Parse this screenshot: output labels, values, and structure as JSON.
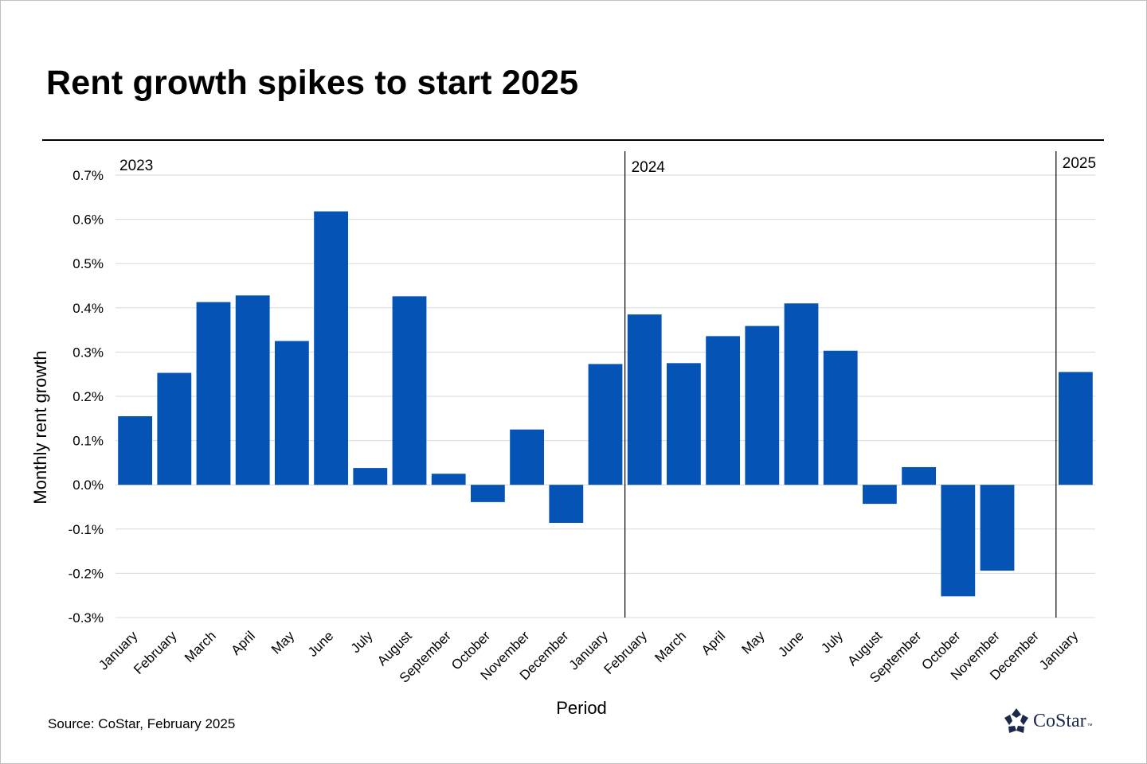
{
  "title": "Rent growth spikes to start 2025",
  "source": "Source: CoStar, February 2025",
  "logo": {
    "name": "costar-logo-icon",
    "text": "CoStar",
    "tm": "™"
  },
  "colors": {
    "bar": "#0554b5",
    "grid": "#d9d9d9",
    "text": "#000000"
  },
  "chart_data": {
    "type": "bar",
    "xlabel": "Period",
    "ylabel": "Monthly rent growth",
    "ylim": [
      -0.3,
      0.7
    ],
    "yticks": [
      0.7,
      0.6,
      0.5,
      0.4,
      0.3,
      0.2,
      0.1,
      0.0,
      -0.1,
      -0.2,
      -0.3
    ],
    "ytick_labels": [
      "0.7%",
      "0.6%",
      "0.5%",
      "0.4%",
      "0.3%",
      "0.2%",
      "0.1%",
      "0.0%",
      "-0.1%",
      "-0.2%",
      "-0.3%"
    ],
    "grid": true,
    "categories": [
      "January",
      "February",
      "March",
      "April",
      "May",
      "June",
      "July",
      "August",
      "September",
      "October",
      "November",
      "December",
      "January",
      "February",
      "March",
      "April",
      "May",
      "June",
      "July",
      "August",
      "September",
      "October",
      "November",
      "December",
      "January"
    ],
    "values": [
      0.155,
      0.253,
      0.413,
      0.428,
      0.325,
      0.618,
      0.038,
      0.426,
      0.025,
      -0.039,
      0.125,
      -0.086,
      0.273,
      0.385,
      0.275,
      0.336,
      0.359,
      0.41,
      0.303,
      -0.043,
      0.04,
      -0.252,
      -0.194,
      null,
      0.255
    ],
    "year_markers": [
      {
        "label": "2023",
        "before_index": 0,
        "line": false
      },
      {
        "label": "2024",
        "before_index": 13,
        "line": true
      },
      {
        "label": "2025",
        "before_index": 24,
        "line": true
      }
    ]
  }
}
